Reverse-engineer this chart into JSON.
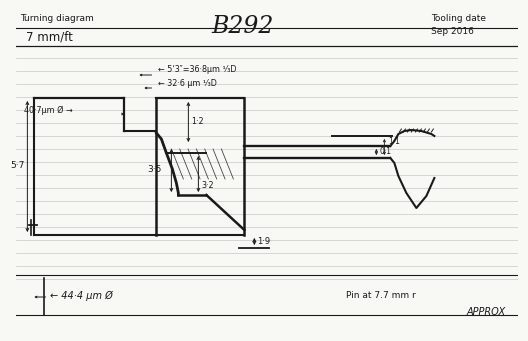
{
  "title": "B292",
  "top_left1": "Turning diagram",
  "top_left2": "7 mm/ft",
  "tooling1": "Tooling date",
  "tooling2": "Sep 2016",
  "dim_40_7": "40·7μm Ø →",
  "dim_5_3": "← 5‘3″=36·8μm ¹⁄₃D",
  "dim_32_6": "← 32·6 μm ¹⁄₃D",
  "dim_1_2": "1·2",
  "dim_3_5": "3·5",
  "dim_3_2": "3·2",
  "dim_1_9": "1·9",
  "dim_5_7": "5·7",
  "dim_0_1": "0·1",
  "dim_1_1": "1·1",
  "dim_44_4": "← 44·4 μm Ø",
  "pin_text": "Pin at 7.7 mm r",
  "approx_text": "APPROX",
  "bg_color": "#f8f8f5",
  "line_color": "#1a1a1a",
  "rule_color": "#c8c8c8"
}
